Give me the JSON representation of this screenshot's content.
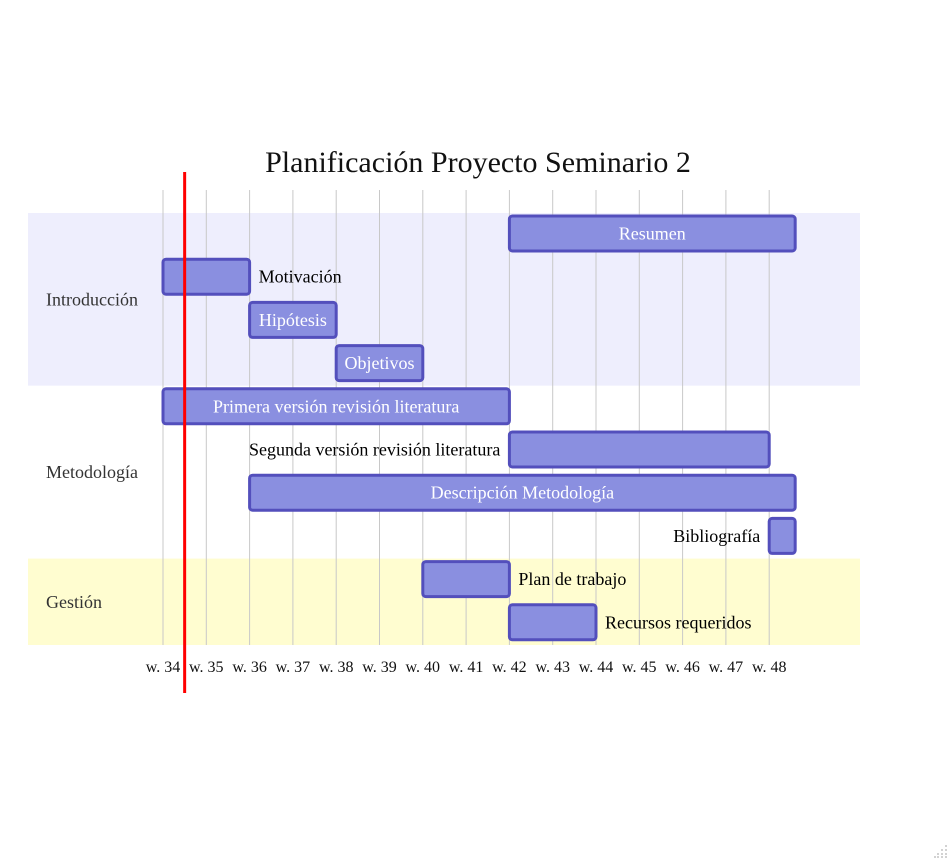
{
  "chart_data": {
    "type": "gantt",
    "title": "Planificación Proyecto Seminario 2",
    "x_ticks": [
      "w. 34",
      "w. 35",
      "w. 36",
      "w. 37",
      "w. 38",
      "w. 39",
      "w. 40",
      "w. 41",
      "w. 42",
      "w. 43",
      "w. 44",
      "w. 45",
      "w. 46",
      "w. 47",
      "w. 48"
    ],
    "xlim": [
      34,
      49.6
    ],
    "today_week": 34.5,
    "grid": true,
    "colors": {
      "bar_fill": "#8a8fe0",
      "bar_stroke": "#534fbc",
      "section_bg": [
        "#eeeefd",
        "#ffffff",
        "#fffdd0"
      ],
      "today_line": "#ff0000",
      "inside_text": "#ffffff",
      "outside_text": "#000000"
    },
    "sections": [
      {
        "name": "Introducción",
        "tasks": [
          {
            "name": "Resumen",
            "start": 42,
            "end": 48.6,
            "label": "inside"
          },
          {
            "name": "Motivación",
            "start": 34,
            "end": 36,
            "label": "right"
          },
          {
            "name": "Hipótesis",
            "start": 36,
            "end": 38,
            "label": "inside"
          },
          {
            "name": "Objetivos",
            "start": 38,
            "end": 40,
            "label": "inside"
          }
        ]
      },
      {
        "name": "Metodología",
        "tasks": [
          {
            "name": "Primera versión revisión literatura",
            "start": 34,
            "end": 42,
            "label": "inside"
          },
          {
            "name": "Segunda versión revisión literatura",
            "start": 42,
            "end": 48,
            "label": "left"
          },
          {
            "name": "Descripción Metodología",
            "start": 36,
            "end": 48.6,
            "label": "inside"
          },
          {
            "name": "Bibliografía",
            "start": 48,
            "end": 48.6,
            "label": "left"
          }
        ]
      },
      {
        "name": "Gestión",
        "tasks": [
          {
            "name": "Plan de trabajo",
            "start": 40,
            "end": 42,
            "label": "right"
          },
          {
            "name": "Recursos requeridos",
            "start": 42,
            "end": 44,
            "label": "right"
          }
        ]
      }
    ]
  }
}
